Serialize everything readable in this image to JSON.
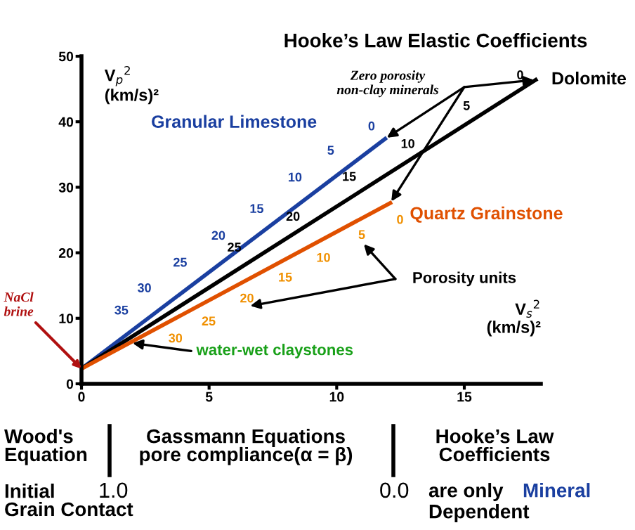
{
  "chart_data": {
    "type": "line",
    "title": "Hooke’s Law Elastic Coefficients",
    "ylabel": "V$_{p}$$^{2}$\n(km/s)²",
    "xlabel": "V$_{s}$$^{2}$\n(km/s)²",
    "xlim": [
      0,
      18
    ],
    "ylim": [
      0,
      50
    ],
    "xticks": [
      0,
      5,
      10,
      15
    ],
    "yticks": [
      0,
      10,
      20,
      30,
      40,
      50
    ],
    "grid": false,
    "series": [
      {
        "name": "Granular Limestone",
        "color": "#1a3fa0",
        "x": [
          0,
          11.9
        ],
        "values": [
          2.3,
          37.4
        ]
      },
      {
        "name": "Dolomite",
        "color": "#000000",
        "x": [
          0,
          17.8
        ],
        "values": [
          2.3,
          46.4
        ]
      },
      {
        "name": "Quartz Grainstone",
        "color": "#e05000",
        "x": [
          0,
          12.1
        ],
        "values": [
          2.3,
          27.6
        ]
      }
    ],
    "annotations": [
      "Zero porosity\nnon-clay minerals",
      "Porosity units",
      "water-wet claystones",
      {
        "text": "NaCl\nbrine",
        "x": 0,
        "y": 2.3
      },
      "Wood's\nEquation",
      "Gassmann Equations\npore compliance(α = β)",
      "Hooke’s Law\nCoefficients",
      "Initial\nGrain Contact",
      "1.0",
      "0.0",
      "are only",
      "Mineral",
      "Dependent",
      {
        "text": "35",
        "x": 2.1,
        "y": 9.3
      },
      {
        "text": "30",
        "x": 3.0,
        "y": 12.7
      },
      {
        "text": "25",
        "x": 4.4,
        "y": 16.6
      },
      {
        "text": "20",
        "x": 5.9,
        "y": 20.7
      },
      {
        "text": "15",
        "x": 7.4,
        "y": 24.8
      },
      {
        "text": "10",
        "x": 8.9,
        "y": 29.6
      },
      {
        "text": "5",
        "x": 10.3,
        "y": 33.7
      },
      {
        "text": "0",
        "x": 11.9,
        "y": 37.4
      },
      {
        "text": "25",
        "x": 6.6,
        "y": 20.1
      },
      {
        "text": "20",
        "x": 8.9,
        "y": 24.8
      },
      {
        "text": "15",
        "x": 11.1,
        "y": 30.9
      },
      {
        "text": "10",
        "x": 13.4,
        "y": 35.9
      },
      {
        "text": "5",
        "x": 15.7,
        "y": 41.7
      },
      {
        "text": "0",
        "x": 17.8,
        "y": 46.4
      },
      {
        "text": "30",
        "x": 3.3,
        "y": 9.5
      },
      {
        "text": "25",
        "x": 4.6,
        "y": 12.1
      },
      {
        "text": "20",
        "x": 6.1,
        "y": 15.6
      },
      {
        "text": "15",
        "x": 7.6,
        "y": 18.8
      },
      {
        "text": "10",
        "x": 9.1,
        "y": 21.8
      },
      {
        "text": "5",
        "x": 10.6,
        "y": 25.3
      },
      {
        "text": "0",
        "x": 12.1,
        "y": 27.6
      }
    ]
  }
}
